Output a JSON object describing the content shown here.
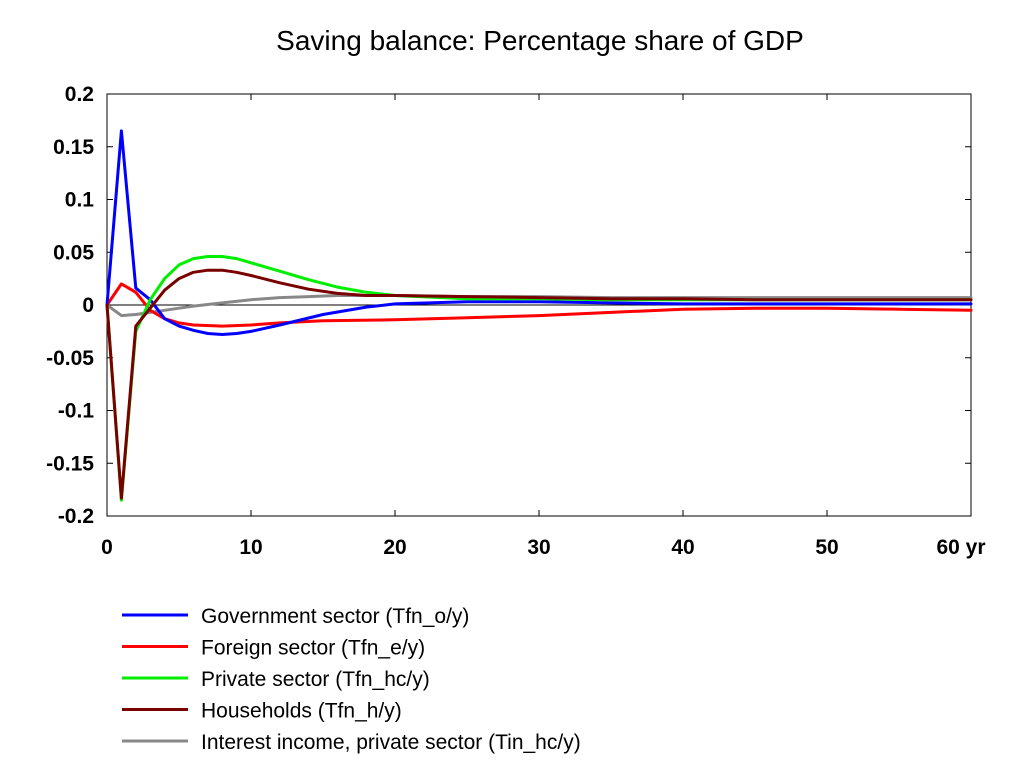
{
  "chart_data": {
    "type": "line",
    "title": "Saving balance: Percentage share of GDP",
    "xlim": [
      0,
      60
    ],
    "ylim": [
      -0.2,
      0.2
    ],
    "x_ticks": [
      {
        "value": 0,
        "label": "0"
      },
      {
        "value": 10,
        "label": "10"
      },
      {
        "value": 20,
        "label": "20"
      },
      {
        "value": 30,
        "label": "30"
      },
      {
        "value": 40,
        "label": "40"
      },
      {
        "value": 50,
        "label": "50"
      },
      {
        "value": 60,
        "label": "60 yr"
      }
    ],
    "y_ticks": [
      {
        "value": 0.2,
        "label": "0.2"
      },
      {
        "value": 0.15,
        "label": "0.15"
      },
      {
        "value": 0.1,
        "label": "0.1"
      },
      {
        "value": 0.05,
        "label": "0.05"
      },
      {
        "value": 0,
        "label": "0"
      },
      {
        "value": -0.05,
        "label": "-0.05"
      },
      {
        "value": -0.1,
        "label": "-0.1"
      },
      {
        "value": -0.15,
        "label": "-0.15"
      },
      {
        "value": -0.2,
        "label": "-0.2"
      }
    ],
    "zero_line": true,
    "grid": false,
    "legend_position": "bottom",
    "series": [
      {
        "name": "Government sector (Tfn_o/y)",
        "color": "#0000ff",
        "x": [
          0,
          1,
          2,
          3,
          4,
          5,
          6,
          7,
          8,
          9,
          10,
          12,
          15,
          18,
          20,
          25,
          30,
          35,
          40,
          45,
          50,
          55,
          60
        ],
        "y": [
          0,
          0.165,
          0.016,
          0.005,
          -0.013,
          -0.02,
          -0.024,
          -0.027,
          -0.028,
          -0.027,
          -0.025,
          -0.019,
          -0.009,
          -0.002,
          0.001,
          0.003,
          0.003,
          0.002,
          0.001,
          0.001,
          0.001,
          0.001,
          0.001
        ]
      },
      {
        "name": "Foreign sector (Tfn_e/y)",
        "color": "#ff0000",
        "x": [
          0,
          1,
          2,
          3,
          4,
          5,
          6,
          8,
          10,
          12,
          15,
          20,
          25,
          30,
          35,
          40,
          45,
          50,
          55,
          60
        ],
        "y": [
          0,
          0.02,
          0.012,
          -0.005,
          -0.013,
          -0.017,
          -0.019,
          -0.02,
          -0.019,
          -0.017,
          -0.015,
          -0.014,
          -0.012,
          -0.01,
          -0.007,
          -0.004,
          -0.003,
          -0.003,
          -0.004,
          -0.005
        ]
      },
      {
        "name": "Private sector (Tfn_hc/y)",
        "color": "#00ee00",
        "x": [
          0,
          1,
          2,
          3,
          4,
          5,
          6,
          7,
          8,
          9,
          10,
          12,
          14,
          16,
          18,
          20,
          25,
          30,
          35,
          40,
          45,
          50,
          55,
          60
        ],
        "y": [
          0,
          -0.185,
          -0.025,
          0.005,
          0.025,
          0.038,
          0.044,
          0.046,
          0.046,
          0.044,
          0.04,
          0.032,
          0.024,
          0.017,
          0.012,
          0.009,
          0.006,
          0.006,
          0.005,
          0.005,
          0.005,
          0.005,
          0.005,
          0.005
        ]
      },
      {
        "name": "Households (Tfn_h/y)",
        "color": "#7a0000",
        "x": [
          0,
          1,
          2,
          3,
          4,
          5,
          6,
          7,
          8,
          9,
          10,
          12,
          14,
          16,
          18,
          20,
          25,
          30,
          35,
          40,
          45,
          50,
          55,
          60
        ],
        "y": [
          0,
          -0.183,
          -0.02,
          -0.003,
          0.014,
          0.025,
          0.031,
          0.033,
          0.033,
          0.031,
          0.028,
          0.021,
          0.015,
          0.011,
          0.009,
          0.009,
          0.008,
          0.007,
          0.006,
          0.006,
          0.005,
          0.005,
          0.005,
          0.005
        ]
      },
      {
        "name": "Interest income, private sector (Tin_hc/y)",
        "color": "#888888",
        "x": [
          0,
          1,
          2,
          3,
          4,
          5,
          6,
          8,
          10,
          12,
          14,
          16,
          18,
          20,
          25,
          30,
          35,
          40,
          45,
          50,
          55,
          60
        ],
        "y": [
          0,
          -0.01,
          -0.009,
          -0.007,
          -0.005,
          -0.003,
          -0.001,
          0.002,
          0.005,
          0.007,
          0.008,
          0.009,
          0.009,
          0.009,
          0.008,
          0.008,
          0.007,
          0.007,
          0.007,
          0.007,
          0.007,
          0.007
        ]
      }
    ]
  }
}
